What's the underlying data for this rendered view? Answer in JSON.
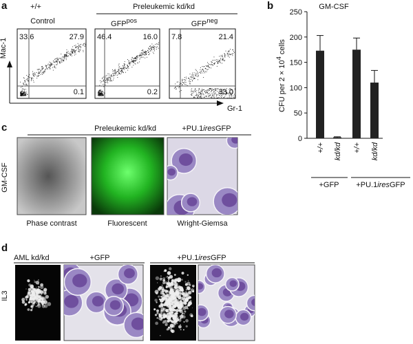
{
  "panel_a": {
    "label": "a",
    "wt": "+/+",
    "control": "Control",
    "group": "Preleukemic kd/kd",
    "gfp_pos": [
      "GFP",
      "pos"
    ],
    "gfp_neg": [
      "GFP",
      "neg"
    ],
    "y_axis": "Mac-1",
    "x_axis": "Gr-1",
    "quadrants": [
      [
        "33.6",
        "27.9",
        "0.1"
      ],
      [
        "46.4",
        "16.0",
        "0.2"
      ],
      [
        "7.8",
        "21.4",
        "33.0"
      ]
    ]
  },
  "chart_data": {
    "type": "bar",
    "panel_label": "b",
    "title": "GM-CSF",
    "y_label_parts": [
      "CFU per 2 × 10",
      "4",
      " cells"
    ],
    "categories": [
      "+/+",
      "kd/kd",
      "+/+",
      "kd/kd"
    ],
    "values": [
      173,
      2,
      175,
      110
    ],
    "errors": [
      30,
      1,
      23,
      24
    ],
    "color": "#222222",
    "ylim": [
      0,
      250
    ],
    "yticks": [
      0,
      50,
      100,
      150,
      200,
      250
    ],
    "groups": [
      [
        "+GFP"
      ],
      [
        "+PU.1",
        "ires",
        "GFP"
      ]
    ]
  },
  "panel_c": {
    "label": "c",
    "group": "Preleukemic kd/kd",
    "construct": [
      "+PU.1",
      "ires",
      "GFP"
    ],
    "side": "GM-CSF",
    "captions": [
      "Phase contrast",
      "Fluorescent",
      "Wright-Giemsa"
    ]
  },
  "panel_d": {
    "label": "d",
    "sample": "AML kd/kd",
    "gfp": "+GFP",
    "construct": [
      "+PU.1",
      "ires",
      "GFP"
    ],
    "side": "IL3"
  }
}
